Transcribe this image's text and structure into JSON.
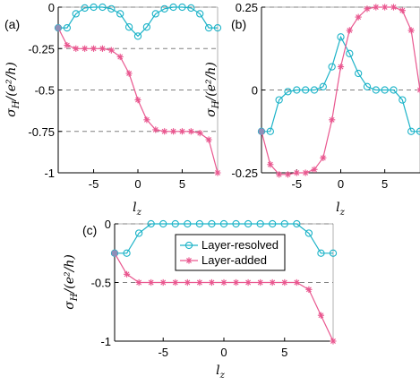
{
  "colors": {
    "resolved": "#1cb3c8",
    "added": "#e9578f"
  },
  "chart_data": [
    {
      "type": "line",
      "panel_label": "(a)",
      "xlabel": "l_z",
      "ylabel": "σ_H/(e²/h)",
      "xlim": [
        -9,
        9
      ],
      "ylim": [
        -1,
        0
      ],
      "xticks": [
        -5,
        0,
        5
      ],
      "xtick_labels": [
        "-5",
        "0",
        "5"
      ],
      "yticks": [
        0,
        -0.25,
        -0.5,
        -0.75,
        -1
      ],
      "ytick_labels": [
        "0",
        "-0.25",
        "-0.5",
        "-0.75",
        "-1"
      ],
      "grid_y": [
        0,
        -0.25,
        -0.5,
        -0.75,
        -1
      ],
      "x": [
        -9,
        -8,
        -7,
        -6,
        -5,
        -4,
        -3,
        -2,
        -1,
        0,
        1,
        2,
        3,
        4,
        5,
        6,
        7,
        8,
        9
      ],
      "series": [
        {
          "key": "resolved",
          "marker": "circle",
          "values": [
            -0.125,
            -0.125,
            -0.04,
            -0.005,
            0,
            0,
            -0.01,
            -0.04,
            -0.12,
            -0.175,
            -0.12,
            -0.04,
            -0.01,
            0,
            0,
            -0.005,
            -0.04,
            -0.125,
            -0.125
          ]
        },
        {
          "key": "added",
          "marker": "star",
          "values": [
            -0.125,
            -0.23,
            -0.25,
            -0.25,
            -0.25,
            -0.25,
            -0.26,
            -0.3,
            -0.4,
            -0.56,
            -0.68,
            -0.74,
            -0.75,
            -0.75,
            -0.75,
            -0.75,
            -0.76,
            -0.8,
            -1
          ]
        }
      ]
    },
    {
      "type": "line",
      "panel_label": "(b)",
      "xlabel": "l_z",
      "ylabel": "σ_H/(e²/h)",
      "xlim": [
        -9,
        9
      ],
      "ylim": [
        -0.25,
        0.25
      ],
      "xticks": [
        -5,
        0,
        5
      ],
      "xtick_labels": [
        "-5",
        "0",
        "5"
      ],
      "yticks": [
        0.25,
        0,
        -0.25
      ],
      "ytick_labels": [
        "0.25",
        "0",
        "-0.25"
      ],
      "grid_y": [
        0.25,
        0,
        -0.25
      ],
      "x": [
        -9,
        -8,
        -7,
        -6,
        -5,
        -4,
        -3,
        -2,
        -1,
        0,
        1,
        2,
        3,
        4,
        5,
        6,
        7,
        8,
        9
      ],
      "series": [
        {
          "key": "resolved",
          "marker": "circle",
          "values": [
            -0.125,
            -0.125,
            -0.03,
            -0.005,
            0,
            0,
            0,
            0.01,
            0.07,
            0.16,
            0.11,
            0.05,
            0.01,
            0,
            0,
            0,
            -0.03,
            -0.125,
            -0.125
          ]
        },
        {
          "key": "added",
          "marker": "star",
          "values": [
            -0.125,
            -0.225,
            -0.255,
            -0.255,
            -0.25,
            -0.25,
            -0.24,
            -0.205,
            -0.09,
            0.07,
            0.18,
            0.22,
            0.245,
            0.25,
            0.25,
            0.25,
            0.24,
            0.18,
            0
          ]
        }
      ]
    },
    {
      "type": "line",
      "panel_label": "(c)",
      "xlabel": "l_z",
      "ylabel": "σ_H/(e²/h)",
      "xlim": [
        -9,
        9
      ],
      "ylim": [
        -1,
        0
      ],
      "xticks": [
        -5,
        0,
        5
      ],
      "xtick_labels": [
        "-5",
        "0",
        "5"
      ],
      "yticks": [
        0,
        -0.5,
        -1
      ],
      "ytick_labels": [
        "0",
        "-0.5",
        "-1"
      ],
      "grid_y": [
        0,
        -0.5,
        -1
      ],
      "legend": {
        "placement": "upper-center",
        "entries": [
          "Layer-resolved",
          "Layer-added"
        ]
      },
      "x": [
        -9,
        -8,
        -7,
        -6,
        -5,
        -4,
        -3,
        -2,
        -1,
        0,
        1,
        2,
        3,
        4,
        5,
        6,
        7,
        8,
        9
      ],
      "series": [
        {
          "key": "resolved",
          "marker": "circle",
          "name": "Layer-resolved",
          "values": [
            -0.25,
            -0.25,
            -0.08,
            0,
            0,
            0,
            0,
            0,
            0,
            0,
            0,
            0,
            0,
            0,
            0,
            0,
            -0.08,
            -0.25,
            -0.25
          ]
        },
        {
          "key": "added",
          "marker": "star",
          "name": "Layer-added",
          "values": [
            -0.25,
            -0.43,
            -0.5,
            -0.5,
            -0.5,
            -0.5,
            -0.5,
            -0.5,
            -0.5,
            -0.5,
            -0.5,
            -0.5,
            -0.5,
            -0.5,
            -0.5,
            -0.5,
            -0.56,
            -0.78,
            -1
          ]
        }
      ]
    }
  ]
}
